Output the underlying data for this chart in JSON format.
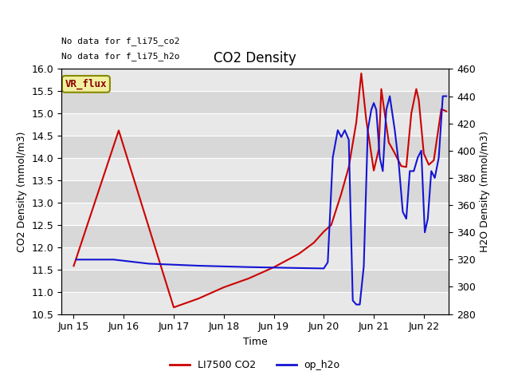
{
  "title": "CO2 Density",
  "xlabel": "Time",
  "ylabel_left": "CO2 Density (mmol/m3)",
  "ylabel_right": "H2O Density (mmol/m3)",
  "top_text_1": "No data for f_li75_co2",
  "top_text_2": "No data for f_li75_h2o",
  "box_label": "VR_flux",
  "ylim_left": [
    10.5,
    16.0
  ],
  "ylim_right": [
    280,
    460
  ],
  "yticks_left": [
    10.5,
    11.0,
    11.5,
    12.0,
    12.5,
    13.0,
    13.5,
    14.0,
    14.5,
    15.0,
    15.5,
    16.0
  ],
  "yticks_right": [
    280,
    300,
    320,
    340,
    360,
    380,
    400,
    420,
    440,
    460
  ],
  "background_color": "#ffffff",
  "plot_bg_light": "#e8e8e8",
  "plot_bg_dark": "#d8d8d8",
  "grid_color": "#ffffff",
  "red_line_label": "LI7500 CO2",
  "blue_line_label": "op_h2o",
  "red_color": "#cc0000",
  "blue_color": "#1414d4",
  "x_ticks": [
    "Jun 15",
    "Jun 16",
    "Jun 17",
    "Jun 18",
    "Jun 19",
    "Jun 20",
    "Jun 21",
    "Jun 22"
  ],
  "x_tick_pos": [
    0,
    1,
    2,
    3,
    4,
    5,
    6,
    7
  ],
  "xlim": [
    -0.25,
    7.5
  ],
  "x_values_red": [
    0.0,
    0.9,
    2.0,
    2.5,
    3.0,
    3.5,
    4.0,
    4.5,
    4.8,
    5.0,
    5.15,
    5.35,
    5.5,
    5.65,
    5.75,
    5.85,
    6.0,
    6.1,
    6.15,
    6.3,
    6.4,
    6.55,
    6.65,
    6.75,
    6.85,
    6.9,
    7.0,
    7.1,
    7.2,
    7.35,
    7.45
  ],
  "y_values_red": [
    11.58,
    14.62,
    10.65,
    10.85,
    11.1,
    11.3,
    11.55,
    11.85,
    12.1,
    12.35,
    12.5,
    13.2,
    13.8,
    14.8,
    15.9,
    14.85,
    13.72,
    14.2,
    15.55,
    14.35,
    14.15,
    13.82,
    13.8,
    15.0,
    15.55,
    15.3,
    14.1,
    13.85,
    13.95,
    15.1,
    15.05
  ],
  "x_values_blue": [
    0.05,
    0.8,
    1.5,
    2.5,
    3.5,
    4.5,
    5.0,
    5.08,
    5.18,
    5.28,
    5.35,
    5.42,
    5.5,
    5.58,
    5.65,
    5.72,
    5.8,
    5.88,
    5.95,
    6.0,
    6.05,
    6.12,
    6.18,
    6.25,
    6.32,
    6.42,
    6.5,
    6.58,
    6.65,
    6.72,
    6.8,
    6.88,
    6.95,
    7.02,
    7.08,
    7.15,
    7.22,
    7.3,
    7.38,
    7.45
  ],
  "y_values_blue": [
    320,
    320,
    317,
    315.5,
    314.5,
    313.8,
    313.5,
    318,
    395,
    415,
    410,
    415,
    408,
    290,
    287,
    287,
    315,
    415,
    430,
    435,
    430,
    395,
    385,
    430,
    440,
    415,
    390,
    355,
    350,
    385,
    385,
    395,
    400,
    340,
    350,
    385,
    380,
    395,
    440,
    440
  ]
}
